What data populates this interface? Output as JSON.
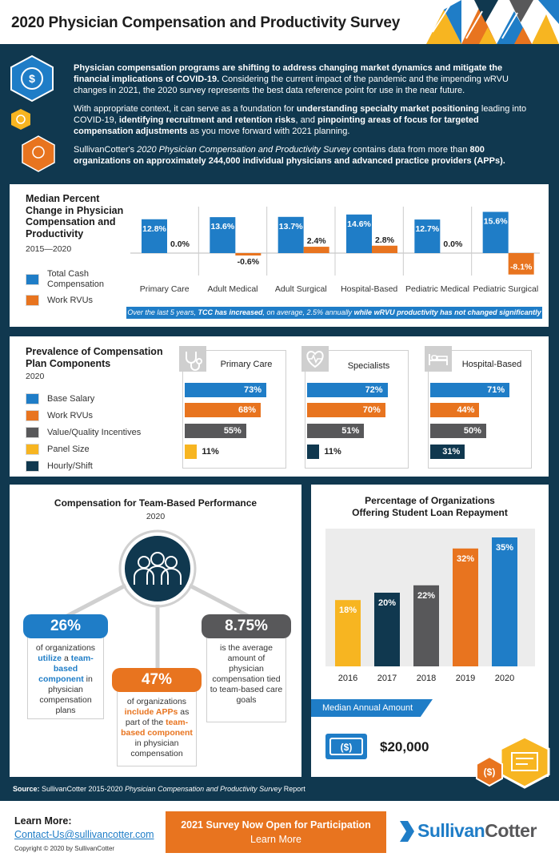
{
  "title": "2020 Physician Compensation and Productivity Survey",
  "intro": {
    "p1_bold": "Physician compensation programs are shifting to address changing market dynamics and mitigate the financial implications of COVID-19.",
    "p1_rest": " Considering the current impact of the pandemic and the impending wRVU changes in 2021, the 2020 survey represents the best data reference point for use in the near future.",
    "p2_a": "With appropriate context, it can serve as a foundation for ",
    "p2_b": "understanding specialty market positioning",
    "p2_c": " leading into COVID-19, ",
    "p2_d": "identifying recruitment and retention risks",
    "p2_e": ", and ",
    "p2_f": "pinpointing areas of focus for targeted compensation adjustments",
    "p2_g": " as you move forward with 2021 planning.",
    "p3_a": "SullivanCotter's ",
    "p3_b": "2020 Physician Compensation and Productivity Survey",
    "p3_c": " contains data from more than ",
    "p3_d": "800 organizations on approximately 244,000 individual physicians and advanced practice providers (APPs)."
  },
  "colors": {
    "blue": "#1f7dc7",
    "orange": "#e8741f",
    "gray": "#58585a",
    "yellow": "#f7b521",
    "navy": "#10384f"
  },
  "median_chart": {
    "heading": "Median Percent Change in Physician Compensation and Productivity",
    "years": "2015—2020",
    "legend": [
      "Total Cash Compensation",
      "Work RVUs"
    ],
    "footnote_a": "Over the last 5 years, ",
    "footnote_b": "TCC has increased",
    "footnote_c": ", on average, 2.5% annually ",
    "footnote_d": "while wRVU productivity has not changed significantly",
    "chart_data": {
      "type": "bar",
      "categories": [
        "Primary Care",
        "Adult Medical",
        "Adult Surgical",
        "Hospital-Based",
        "Pediatric Medical",
        "Pediatric Surgical"
      ],
      "series": [
        {
          "name": "Total Cash Compensation",
          "values": [
            12.8,
            13.6,
            13.7,
            14.6,
            12.7,
            15.6
          ],
          "labels": [
            "12.8%",
            "13.6%",
            "13.7%",
            "14.6%",
            "12.7%",
            "15.6%"
          ]
        },
        {
          "name": "Work RVUs",
          "values": [
            0.0,
            -0.6,
            2.4,
            2.8,
            0.0,
            -8.1
          ],
          "labels": [
            "0.0%",
            "-0.6%",
            "2.4%",
            "2.8%",
            "0.0%",
            "-8.1%"
          ]
        }
      ]
    }
  },
  "prevalence": {
    "heading": "Prevalence of Compensation Plan Components",
    "year": "2020",
    "legend": [
      "Base Salary",
      "Work RVUs",
      "Value/Quality Incentives",
      "Panel Size",
      "Hourly/Shift"
    ],
    "chart_data": [
      {
        "type": "bar",
        "title": "Primary Care",
        "values": [
          73,
          68,
          55,
          11
        ],
        "labels": [
          "73%",
          "68%",
          "55%",
          "11%"
        ],
        "series": [
          "blue",
          "orange",
          "gray",
          "yellow"
        ]
      },
      {
        "type": "bar",
        "title": "Specialists",
        "values": [
          72,
          70,
          51,
          11
        ],
        "labels": [
          "72%",
          "70%",
          "51%",
          "11%"
        ],
        "series": [
          "blue",
          "orange",
          "gray",
          "navy"
        ]
      },
      {
        "type": "bar",
        "title": "Hospital-Based",
        "values": [
          71,
          44,
          50,
          31
        ],
        "labels": [
          "71%",
          "44%",
          "50%",
          "31%"
        ],
        "series": [
          "blue",
          "orange",
          "gray",
          "navy"
        ]
      }
    ]
  },
  "team": {
    "heading": "Compensation for Team-Based Performance",
    "year": "2020",
    "stat1": {
      "value": "26%",
      "a": "of organizations ",
      "b": "utilize",
      "c": " a ",
      "d": "team-based component",
      "e": " in physician compensation plans"
    },
    "stat2": {
      "value": "47%",
      "a": "of organizations ",
      "b": "include APPs",
      "c": " as part of the ",
      "d": "team-based component",
      "e": " in physician compensation"
    },
    "stat3": {
      "value": "8.75%",
      "text": "is the average amount of physician compensation tied to team-based care goals"
    }
  },
  "loan": {
    "heading_1": "Percentage of Organizations",
    "heading_2": "Offering Student Loan Repayment",
    "median_label": "Median Annual Amount",
    "median_value": "$20,000",
    "money_icon_text": "($)",
    "chart_data": {
      "type": "bar",
      "categories": [
        "2016",
        "2017",
        "2018",
        "2019",
        "2020"
      ],
      "values": [
        18,
        20,
        22,
        32,
        35
      ],
      "labels": [
        "18%",
        "20%",
        "22%",
        "32%",
        "35%"
      ]
    }
  },
  "source_a": "Source:",
  "source_b": " SullivanCotter 2015-2020 ",
  "source_c": "Physician Compensation and Productivity Survey",
  "source_d": " Report",
  "footer": {
    "learn_more": "Learn More:",
    "email": "Contact-Us@sullivancotter.com",
    "copyright": "Copyright © 2020 by SullivanCotter",
    "cta_line1": "2021 Survey Now Open for Participation",
    "cta_line2": "Learn More",
    "logo_1": "Sullivan",
    "logo_2": "Cotter"
  }
}
